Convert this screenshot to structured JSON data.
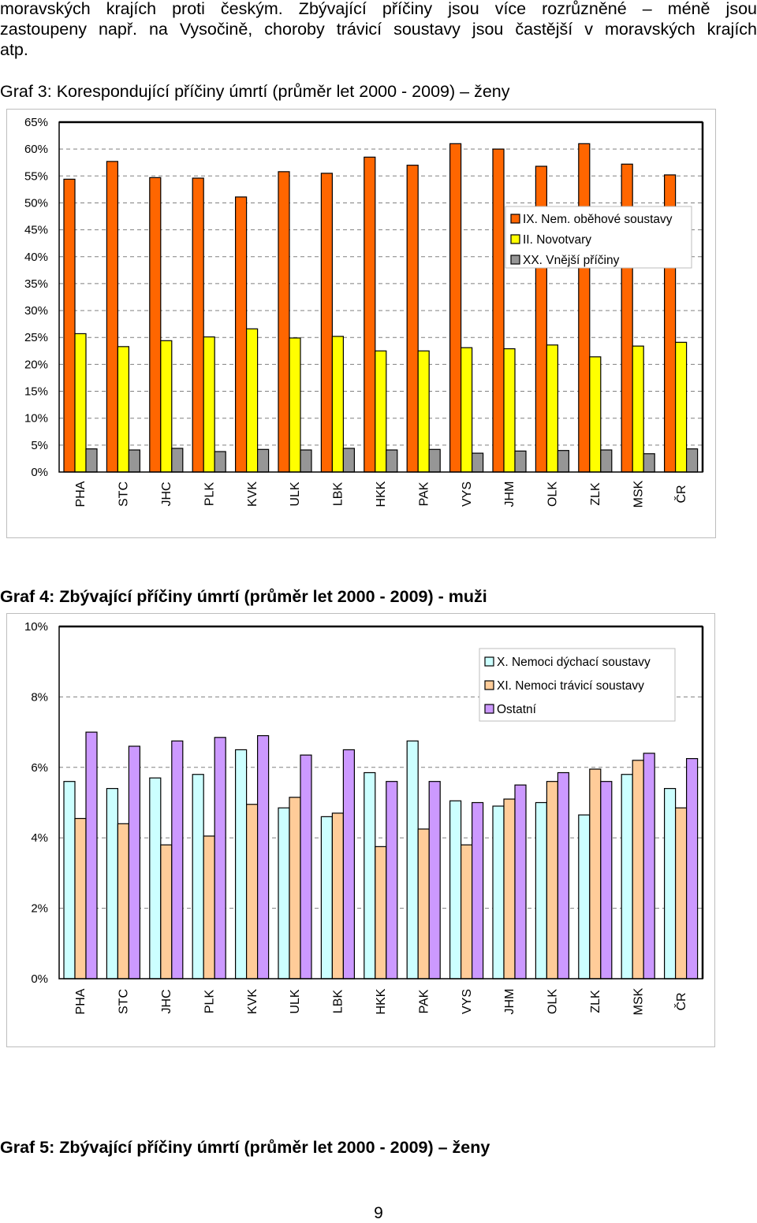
{
  "intro": {
    "line1": "moravských krajích proti českým. Zbývající příčiny jsou více rozrůzněné – méně jsou",
    "line2": "zastoupeny např. na Vysočině, choroby trávicí soustavy jsou častější v moravských krajích",
    "line3": "atp."
  },
  "graf3": {
    "caption": "Graf 3: Korespondující příčiny úmrtí (průměr let 2000 - 2009) – ženy"
  },
  "graf4": {
    "caption": "Graf 4: Zbývající příčiny úmrtí (průměr let 2000 - 2009) - muži"
  },
  "graf5": {
    "caption": "Graf 5: Zbývající příčiny úmrtí (průměr let 2000 - 2009) – ženy"
  },
  "page_number": "9",
  "chart_data": [
    {
      "type": "bar",
      "categories": [
        "PHA",
        "STC",
        "JHC",
        "PLK",
        "KVK",
        "ULK",
        "LBK",
        "HKK",
        "PAK",
        "VYS",
        "JHM",
        "OLK",
        "ZLK",
        "MSK",
        "ČR"
      ],
      "series": [
        {
          "name": "IX. Nem. oběhové soustavy",
          "color": "#ff6600",
          "values": [
            54.4,
            57.7,
            54.7,
            54.6,
            51.1,
            55.8,
            55.5,
            58.5,
            57.0,
            61.0,
            60.0,
            56.8,
            61.0,
            57.2,
            55.2
          ]
        },
        {
          "name": "II. Novotvary",
          "color": "#ffff00",
          "values": [
            25.7,
            23.3,
            24.4,
            25.1,
            26.6,
            24.9,
            25.2,
            22.5,
            22.5,
            23.1,
            22.9,
            23.6,
            21.4,
            23.4,
            24.1
          ]
        },
        {
          "name": "XX. Vnější příčiny",
          "color": "#969696",
          "values": [
            4.3,
            4.1,
            4.4,
            3.8,
            4.2,
            4.1,
            4.4,
            4.1,
            4.2,
            3.5,
            3.9,
            4.0,
            4.1,
            3.4,
            4.3
          ]
        }
      ],
      "ylim": [
        0,
        65
      ],
      "yticks": [
        "0%",
        "5%",
        "10%",
        "15%",
        "20%",
        "25%",
        "30%",
        "35%",
        "40%",
        "45%",
        "50%",
        "55%",
        "60%",
        "65%"
      ],
      "grid": true,
      "legend_position": "top-right"
    },
    {
      "type": "bar",
      "categories": [
        "PHA",
        "STC",
        "JHC",
        "PLK",
        "KVK",
        "ULK",
        "LBK",
        "HKK",
        "PAK",
        "VYS",
        "JHM",
        "OLK",
        "ZLK",
        "MSK",
        "ČR"
      ],
      "series": [
        {
          "name": "X. Nemoci dýchací soustavy",
          "color": "#ccffff",
          "values": [
            5.6,
            5.4,
            5.7,
            5.8,
            6.5,
            4.85,
            4.6,
            5.85,
            6.75,
            5.05,
            4.9,
            5.0,
            4.65,
            5.8,
            5.4
          ]
        },
        {
          "name": "XI. Nemoci trávicí soustavy",
          "color": "#ffcc99",
          "values": [
            4.55,
            4.4,
            3.8,
            4.05,
            4.95,
            5.15,
            4.7,
            3.75,
            4.25,
            3.8,
            5.1,
            5.6,
            5.95,
            6.2,
            4.85
          ]
        },
        {
          "name": "Ostatní",
          "color": "#cc99ff",
          "values": [
            7.0,
            6.6,
            6.75,
            6.85,
            6.9,
            6.35,
            6.5,
            5.6,
            5.6,
            5.0,
            5.5,
            5.85,
            5.6,
            6.4,
            6.25
          ]
        }
      ],
      "ylim": [
        0,
        10
      ],
      "yticks": [
        "0%",
        "2%",
        "4%",
        "6%",
        "8%",
        "10%"
      ],
      "grid": true,
      "legend_position": "top-right"
    }
  ]
}
